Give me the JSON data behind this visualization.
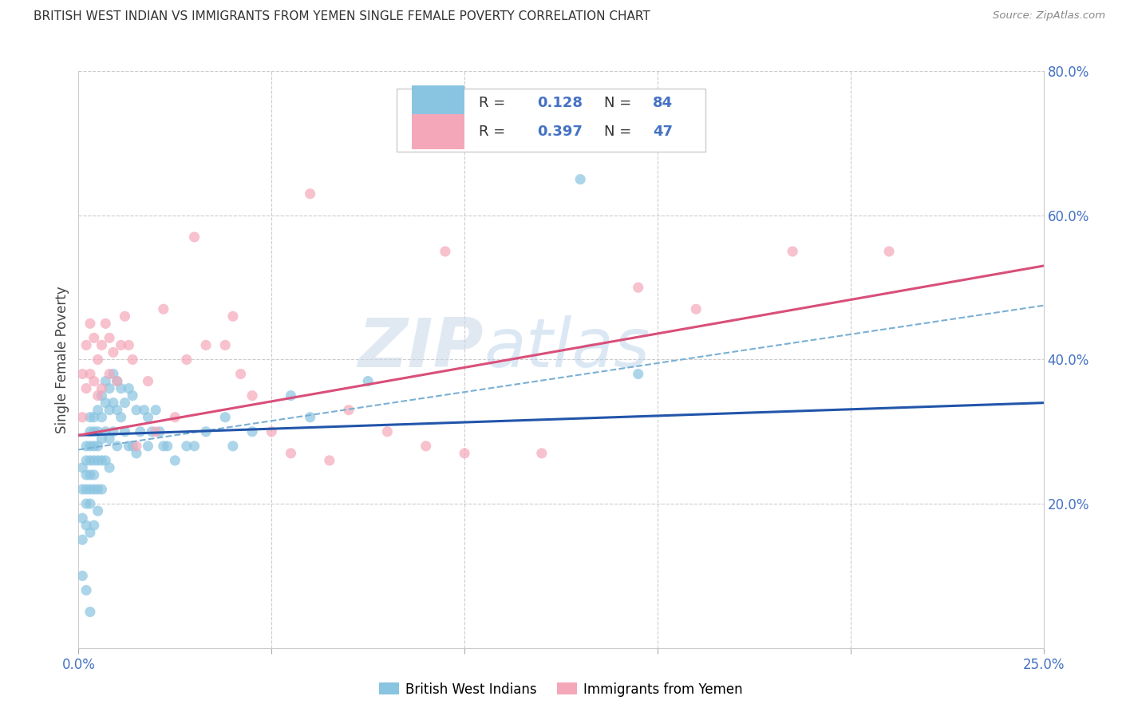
{
  "title": "BRITISH WEST INDIAN VS IMMIGRANTS FROM YEMEN SINGLE FEMALE POVERTY CORRELATION CHART",
  "source": "Source: ZipAtlas.com",
  "ylabel": "Single Female Poverty",
  "xlim": [
    0.0,
    0.25
  ],
  "ylim": [
    0.0,
    0.8
  ],
  "xticks": [
    0.0,
    0.05,
    0.1,
    0.15,
    0.2,
    0.25
  ],
  "yticks_right": [
    0.2,
    0.4,
    0.6,
    0.8
  ],
  "ytick_labels_right": [
    "20.0%",
    "40.0%",
    "60.0%",
    "80.0%"
  ],
  "blue_color": "#89c4e1",
  "pink_color": "#f4a7b9",
  "trend_blue": "#2255aa",
  "trend_pink": "#d94f7a",
  "trend_dashed_color": "#7ab0d4",
  "axis_color": "#4472c4",
  "watermark": "ZIPatlas",
  "blue_scatter_x": [
    0.001,
    0.001,
    0.001,
    0.001,
    0.001,
    0.002,
    0.002,
    0.002,
    0.002,
    0.002,
    0.002,
    0.002,
    0.003,
    0.003,
    0.003,
    0.003,
    0.003,
    0.003,
    0.003,
    0.003,
    0.003,
    0.004,
    0.004,
    0.004,
    0.004,
    0.004,
    0.004,
    0.004,
    0.005,
    0.005,
    0.005,
    0.005,
    0.005,
    0.005,
    0.006,
    0.006,
    0.006,
    0.006,
    0.006,
    0.007,
    0.007,
    0.007,
    0.007,
    0.008,
    0.008,
    0.008,
    0.008,
    0.009,
    0.009,
    0.009,
    0.01,
    0.01,
    0.01,
    0.011,
    0.011,
    0.012,
    0.012,
    0.013,
    0.013,
    0.014,
    0.014,
    0.015,
    0.015,
    0.016,
    0.017,
    0.018,
    0.018,
    0.019,
    0.02,
    0.021,
    0.022,
    0.023,
    0.025,
    0.028,
    0.03,
    0.033,
    0.038,
    0.04,
    0.045,
    0.055,
    0.06,
    0.075,
    0.13,
    0.145
  ],
  "blue_scatter_y": [
    0.25,
    0.22,
    0.18,
    0.15,
    0.1,
    0.28,
    0.26,
    0.24,
    0.22,
    0.2,
    0.17,
    0.08,
    0.32,
    0.3,
    0.28,
    0.26,
    0.24,
    0.22,
    0.2,
    0.16,
    0.05,
    0.32,
    0.3,
    0.28,
    0.26,
    0.24,
    0.22,
    0.17,
    0.33,
    0.3,
    0.28,
    0.26,
    0.22,
    0.19,
    0.35,
    0.32,
    0.29,
    0.26,
    0.22,
    0.37,
    0.34,
    0.3,
    0.26,
    0.36,
    0.33,
    0.29,
    0.25,
    0.38,
    0.34,
    0.3,
    0.37,
    0.33,
    0.28,
    0.36,
    0.32,
    0.34,
    0.3,
    0.36,
    0.28,
    0.35,
    0.28,
    0.33,
    0.27,
    0.3,
    0.33,
    0.32,
    0.28,
    0.3,
    0.33,
    0.3,
    0.28,
    0.28,
    0.26,
    0.28,
    0.28,
    0.3,
    0.32,
    0.28,
    0.3,
    0.35,
    0.32,
    0.37,
    0.65,
    0.38
  ],
  "pink_scatter_x": [
    0.001,
    0.001,
    0.002,
    0.002,
    0.003,
    0.003,
    0.004,
    0.004,
    0.005,
    0.005,
    0.006,
    0.006,
    0.007,
    0.008,
    0.008,
    0.009,
    0.01,
    0.011,
    0.012,
    0.013,
    0.014,
    0.015,
    0.018,
    0.02,
    0.022,
    0.025,
    0.028,
    0.03,
    0.033,
    0.038,
    0.04,
    0.042,
    0.045,
    0.05,
    0.055,
    0.06,
    0.065,
    0.07,
    0.08,
    0.09,
    0.095,
    0.1,
    0.12,
    0.145,
    0.16,
    0.185,
    0.21
  ],
  "pink_scatter_y": [
    0.38,
    0.32,
    0.42,
    0.36,
    0.45,
    0.38,
    0.43,
    0.37,
    0.4,
    0.35,
    0.42,
    0.36,
    0.45,
    0.43,
    0.38,
    0.41,
    0.37,
    0.42,
    0.46,
    0.42,
    0.4,
    0.28,
    0.37,
    0.3,
    0.47,
    0.32,
    0.4,
    0.57,
    0.42,
    0.42,
    0.46,
    0.38,
    0.35,
    0.3,
    0.27,
    0.63,
    0.26,
    0.33,
    0.3,
    0.28,
    0.55,
    0.27,
    0.27,
    0.5,
    0.47,
    0.55,
    0.55
  ],
  "blue_trend_x": [
    0.0,
    0.25
  ],
  "blue_trend_y": [
    0.295,
    0.34
  ],
  "pink_trend_x": [
    0.0,
    0.25
  ],
  "pink_trend_y": [
    0.295,
    0.53
  ],
  "dashed_trend_x": [
    0.0,
    0.25
  ],
  "dashed_trend_y": [
    0.275,
    0.475
  ]
}
